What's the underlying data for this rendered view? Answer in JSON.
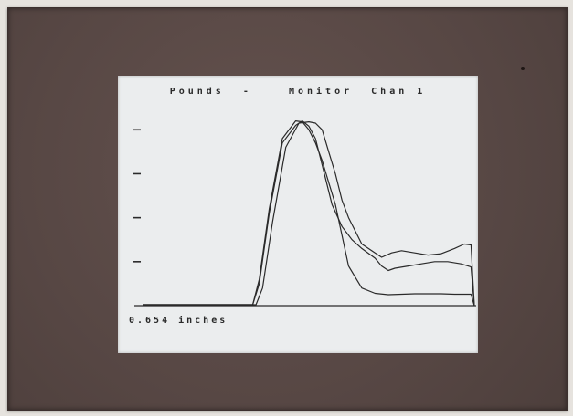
{
  "screen": {
    "title": "Pounds  -    Monitor  Chan 1",
    "position_readout": "0.654 inches"
  },
  "colors": {
    "bezel": "#5a4a47",
    "screen": "#ebedee",
    "ink": "#2a2a2a"
  },
  "chart_data": {
    "type": "line",
    "title": "Pounds  -    Monitor  Chan 1",
    "xlabel": "",
    "ylabel": "",
    "y_ticks": [
      100,
      200,
      300,
      400
    ],
    "ylim": [
      0,
      440
    ],
    "xlim": [
      0,
      100
    ],
    "grid": false,
    "series": [
      {
        "x": [
          0,
          33,
          35,
          38,
          42,
          46,
          48,
          50,
          52,
          54,
          56,
          58,
          60,
          62,
          66,
          70,
          74,
          78,
          82,
          86,
          90,
          94,
          97,
          99,
          100
        ],
        "y": [
          2,
          2,
          60,
          220,
          380,
          420,
          418,
          400,
          370,
          330,
          280,
          230,
          160,
          90,
          40,
          28,
          25,
          26,
          27,
          27,
          27,
          26,
          26,
          26,
          0
        ]
      },
      {
        "x": [
          0,
          33,
          35,
          38,
          42,
          46,
          48,
          50,
          52,
          54,
          57,
          60,
          63,
          66,
          70,
          72,
          74,
          76,
          80,
          84,
          88,
          92,
          96,
          99,
          100
        ],
        "y": [
          2,
          2,
          50,
          210,
          370,
          410,
          420,
          408,
          380,
          320,
          230,
          180,
          150,
          130,
          108,
          90,
          80,
          85,
          90,
          95,
          100,
          100,
          95,
          88,
          0
        ]
      },
      {
        "x": [
          0,
          34,
          36,
          39,
          43,
          47,
          50,
          52,
          54,
          56,
          58,
          60,
          62,
          64,
          66,
          70,
          72,
          75,
          78,
          82,
          86,
          90,
          94,
          97,
          99,
          100
        ],
        "y": [
          2,
          2,
          40,
          190,
          360,
          415,
          418,
          415,
          400,
          350,
          300,
          240,
          200,
          170,
          140,
          120,
          110,
          120,
          125,
          120,
          115,
          118,
          130,
          140,
          138,
          0
        ]
      }
    ]
  }
}
